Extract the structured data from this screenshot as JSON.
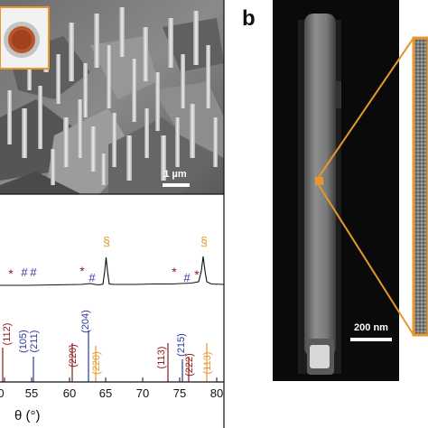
{
  "panel_a": {
    "sem_scale_label": "1 µm",
    "markers": {
      "hash": "#",
      "star": "*",
      "section": "§"
    },
    "reflections": {
      "red": [
        "(112)",
        "(220)",
        "(113)",
        "(222)"
      ],
      "blue": [
        "(105)",
        "(211)",
        "(204)",
        "(215)"
      ],
      "orange": [
        "(220)",
        "(113)"
      ]
    },
    "x_ticks": [
      "0",
      "55",
      "60",
      "65",
      "70",
      "75",
      "80"
    ],
    "x_axis_label": "θ (°)"
  },
  "panel_b": {
    "label": "b",
    "scale_label": "200 nm"
  },
  "colors": {
    "red": "#8b1a1a",
    "blue": "#2b3a9a",
    "orange": "#e8972e",
    "black": "#111111"
  }
}
